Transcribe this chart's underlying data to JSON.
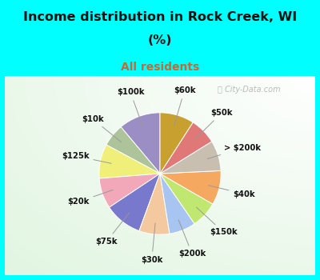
{
  "title_line1": "Income distribution in Rock Creek, WI",
  "title_line2": "(%)",
  "subtitle": "All residents",
  "title_color": "#111111",
  "subtitle_color": "#cc6633",
  "bg_color": "#00FFFF",
  "watermark": "ⓘ City-Data.com",
  "labels": [
    "$100k",
    "$10k",
    "$125k",
    "$20k",
    "$75k",
    "$30k",
    "$200k",
    "$150k",
    "$40k",
    "> $200k",
    "$50k",
    "$60k"
  ],
  "values": [
    11,
    6,
    9,
    8,
    10,
    8,
    7,
    7,
    9,
    8,
    7,
    9
  ],
  "colors": [
    "#9b8ec4",
    "#adc49a",
    "#f0ef7a",
    "#f2a8b8",
    "#7878cc",
    "#f5c9a0",
    "#a8c4f0",
    "#c0e870",
    "#f5a860",
    "#c8bfb0",
    "#e07878",
    "#c8a030"
  ],
  "start_angle": 90,
  "label_r": 1.42,
  "inner_r": 0.78
}
